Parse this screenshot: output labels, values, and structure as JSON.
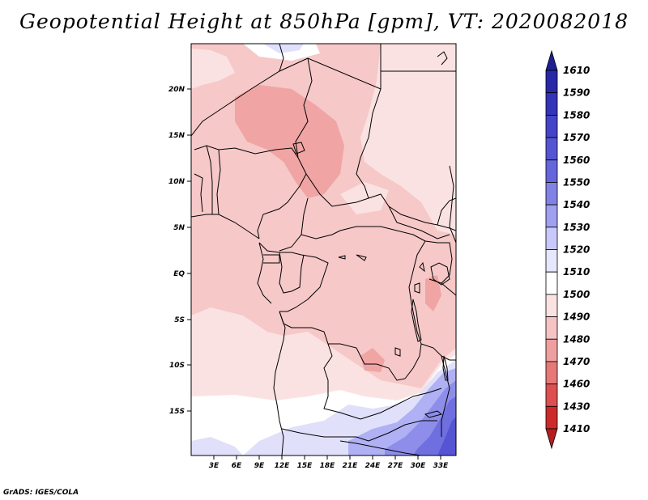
{
  "title": "Geopotential Height at 850hPa [gpm], VT: 2020082018",
  "footer": "GrADS: IGES/COLA",
  "map": {
    "lat_ticks": [
      "20N",
      "15N",
      "10N",
      "5N",
      "EQ",
      "5S",
      "10S",
      "15S"
    ],
    "lon_ticks": [
      "3E",
      "6E",
      "9E",
      "12E",
      "15E",
      "18E",
      "21E",
      "24E",
      "27E",
      "30E",
      "33E"
    ]
  },
  "colorbar": {
    "levels": [
      "1610",
      "1590",
      "1580",
      "1570",
      "1560",
      "1550",
      "1540",
      "1530",
      "1520",
      "1510",
      "1500",
      "1490",
      "1480",
      "1470",
      "1460",
      "1430",
      "1410"
    ],
    "colors": [
      "#1e1e96",
      "#2828a8",
      "#3434b8",
      "#4444c8",
      "#5555d4",
      "#6666dc",
      "#8282e6",
      "#a0a0f0",
      "#c8c8fa",
      "#e6e6fc",
      "#ffffff",
      "#fbe2e2",
      "#f5c3c3",
      "#eea0a0",
      "#e67878",
      "#de5050",
      "#cc2a2a",
      "#b41e1e"
    ]
  }
}
